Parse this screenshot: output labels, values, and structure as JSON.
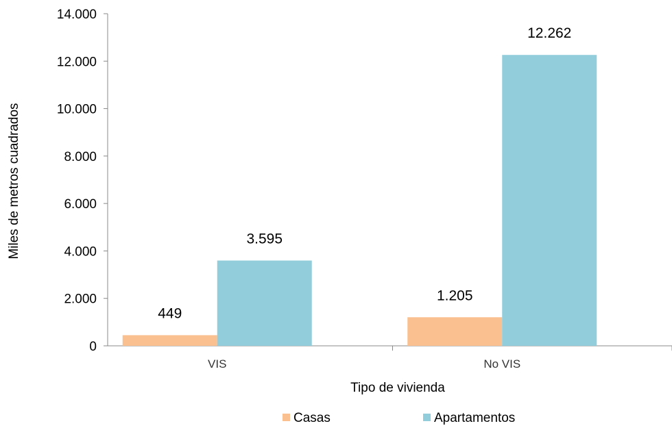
{
  "chart_data": {
    "type": "bar",
    "title": "",
    "xlabel": "Tipo de vivienda",
    "ylabel": "Miles de metros cuadrados",
    "categories": [
      "VIS",
      "No VIS"
    ],
    "series": [
      {
        "name": "Casas",
        "color": "#FAC090",
        "values": [
          449,
          1205
        ],
        "labels": [
          "449",
          "1.205"
        ]
      },
      {
        "name": "Apartamentos",
        "color": "#92CDDC",
        "values": [
          3595,
          12262
        ],
        "labels": [
          "3.595",
          "12.262"
        ]
      }
    ],
    "ylim": [
      0,
      14000
    ],
    "yticks": [
      0,
      2000,
      4000,
      6000,
      8000,
      10000,
      12000,
      14000
    ],
    "ytick_labels": [
      "0",
      "2.000",
      "4.000",
      "6.000",
      "8.000",
      "10.000",
      "12.000",
      "14.000"
    ],
    "grid": false,
    "legend": "bottom"
  }
}
